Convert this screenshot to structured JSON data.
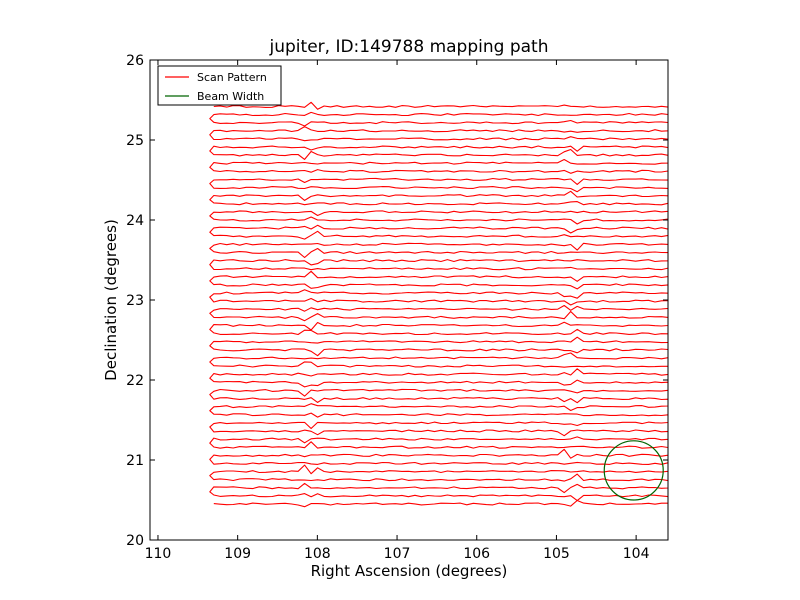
{
  "chart_data": {
    "type": "line",
    "title": "jupiter, ID:149788 mapping path",
    "xlabel": "Right Ascension (degrees)",
    "ylabel": "Declination (degrees)",
    "xlim": [
      110.1,
      103.6
    ],
    "ylim": [
      20,
      26
    ],
    "x_ticks": [
      110,
      109,
      108,
      107,
      106,
      105,
      104
    ],
    "y_ticks": [
      20,
      21,
      22,
      23,
      24,
      25,
      26
    ],
    "grid": false,
    "legend_position": "top-left",
    "series": [
      {
        "name": "Scan Pattern",
        "color": "#ff0000",
        "kind": "raster-scan",
        "ra_min": 109.3,
        "ra_max": 103.6,
        "dec_start": 20.45,
        "dec_end": 25.42,
        "num_rows": 50
      },
      {
        "name": "Beam Width",
        "color": "#006400",
        "kind": "circle",
        "center_ra": 104.03,
        "center_dec": 20.87,
        "radius_deg": 0.37
      }
    ]
  }
}
